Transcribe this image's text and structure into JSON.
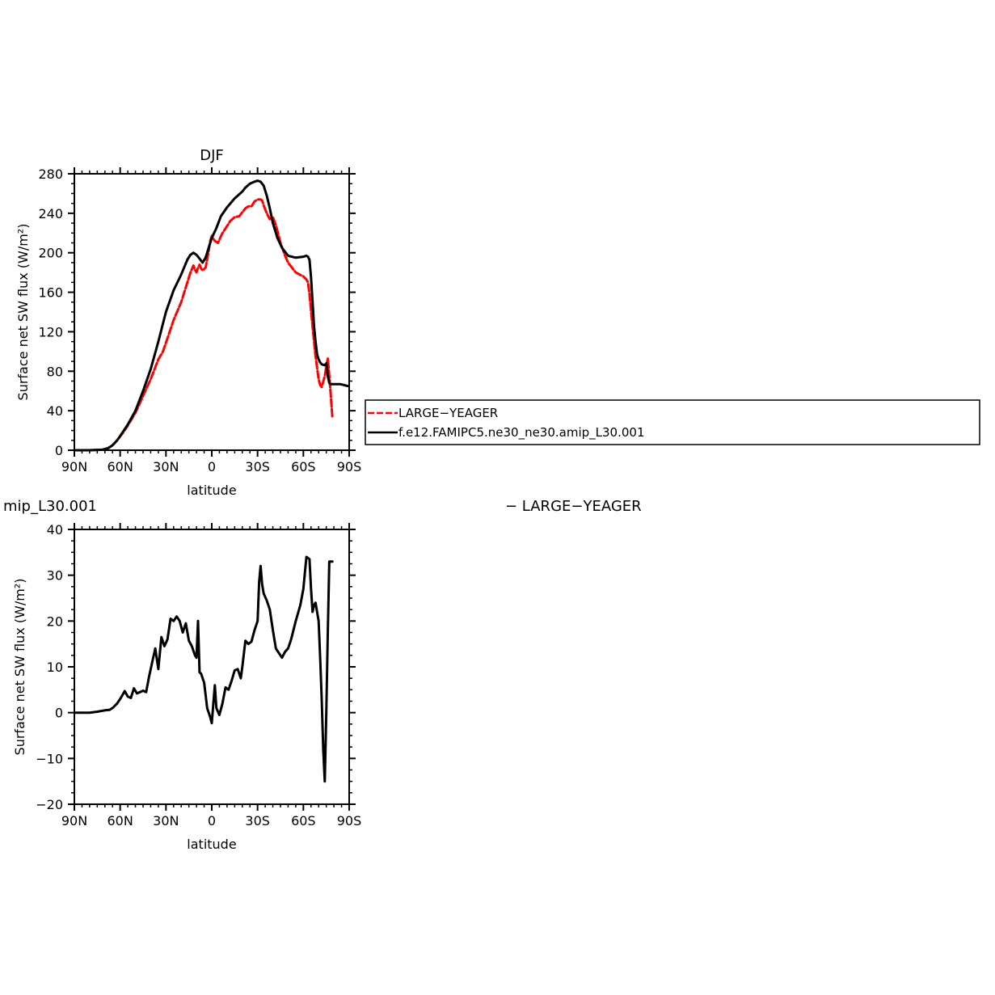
{
  "chart_data": [
    {
      "type": "line",
      "title": "DJF",
      "xlabel": "latitude",
      "ylabel": "Surface net SW flux (W/m²)",
      "xlim": [
        90,
        -90
      ],
      "ylim": [
        0,
        280
      ],
      "x_ticks": [
        90,
        60,
        30,
        0,
        -30,
        -60,
        -90
      ],
      "x_tick_labels": [
        "90N",
        "60N",
        "30N",
        "0",
        "30S",
        "60S",
        "90S"
      ],
      "y_ticks": [
        0,
        40,
        80,
        120,
        160,
        200,
        240,
        280
      ],
      "y_tick_labels": [
        "0",
        "40",
        "80",
        "120",
        "160",
        "200",
        "240",
        "280"
      ],
      "grid": false,
      "legend": "right",
      "series": [
        {
          "name": "LARGE−YEAGER",
          "color": "#ff0000",
          "dash": "dashed",
          "x": [
            90,
            80,
            72,
            68,
            65,
            62,
            58,
            55,
            50,
            45,
            40,
            35,
            32,
            28,
            25,
            20,
            17,
            14,
            12,
            11,
            10,
            9,
            8,
            7,
            6,
            4,
            2,
            1,
            0,
            -2,
            -4,
            -7,
            -10,
            -12,
            -15,
            -18,
            -20,
            -22,
            -24,
            -26,
            -28,
            -30,
            -32,
            -33,
            -34,
            -36,
            -38,
            -40,
            -42,
            -45,
            -48,
            -50,
            -55,
            -60,
            -62,
            -63,
            -64,
            -66,
            -68,
            -70,
            -71,
            -72,
            -74,
            -75,
            -76,
            -77,
            -78,
            -79
          ],
          "y": [
            0,
            0,
            0.5,
            2,
            5,
            10,
            18,
            25,
            38,
            55,
            72,
            92,
            100,
            118,
            132,
            150,
            165,
            180,
            187,
            183,
            180,
            185,
            188,
            184,
            182,
            185,
            202,
            212,
            217,
            212,
            210,
            220,
            227,
            232,
            236,
            237,
            241,
            245,
            247,
            247,
            252,
            254,
            254,
            253,
            248,
            240,
            234,
            236,
            228,
            210,
            197,
            190,
            180,
            176,
            173,
            170,
            158,
            125,
            95,
            72,
            66,
            64,
            75,
            85,
            93,
            75,
            55,
            33
          ]
        },
        {
          "name": "f.e12.FAMIPC5.ne30_ne30.amip_L30.001",
          "color": "#000000",
          "dash": "solid",
          "x": [
            90,
            80,
            72,
            68,
            65,
            62,
            58,
            55,
            50,
            45,
            40,
            35,
            30,
            25,
            20,
            16,
            14,
            12,
            10,
            8,
            6,
            4,
            2,
            0,
            -3,
            -6,
            -10,
            -15,
            -20,
            -22,
            -25,
            -28,
            -30,
            -32,
            -34,
            -36,
            -38,
            -40,
            -43,
            -46,
            -50,
            -55,
            -60,
            -62,
            -63,
            -64,
            -65,
            -66,
            -67,
            -68,
            -69,
            -70,
            -71,
            -72,
            -74,
            -75,
            -76,
            -77,
            -78,
            -80,
            -84,
            -89
          ],
          "y": [
            0,
            0,
            0.5,
            2,
            5,
            10,
            19,
            26,
            40,
            60,
            82,
            110,
            140,
            162,
            178,
            193,
            198,
            200,
            198,
            194,
            190,
            195,
            205,
            215,
            225,
            237,
            246,
            255,
            262,
            266,
            270,
            272,
            273,
            272,
            268,
            258,
            245,
            230,
            215,
            205,
            197,
            195,
            196,
            197,
            196,
            193,
            175,
            150,
            125,
            110,
            97,
            92,
            89,
            87,
            86,
            88,
            75,
            68,
            67,
            67,
            67,
            65
          ]
        }
      ]
    },
    {
      "type": "line",
      "title": "mip_L30.001",
      "title_right": "− LARGE−YEAGER",
      "xlabel": "latitude",
      "ylabel": "Surface net SW flux (W/m²)",
      "xlim": [
        90,
        -90
      ],
      "ylim": [
        -20,
        40
      ],
      "x_ticks": [
        90,
        60,
        30,
        0,
        -30,
        -60,
        -90
      ],
      "x_tick_labels": [
        "90N",
        "60N",
        "30N",
        "0",
        "30S",
        "60S",
        "90S"
      ],
      "y_ticks": [
        -20,
        -10,
        0,
        10,
        20,
        30,
        40
      ],
      "y_tick_labels": [
        "−20",
        "−10",
        "0",
        "10",
        "20",
        "30",
        "40"
      ],
      "grid": false,
      "series": [
        {
          "color": "#000000",
          "dash": "solid",
          "x": [
            90,
            80,
            75,
            70,
            67,
            65,
            62,
            60,
            57,
            55,
            53,
            51,
            49,
            47,
            45,
            43,
            41,
            39,
            37,
            35,
            33,
            31,
            29,
            27,
            25,
            23,
            21,
            19,
            17,
            15,
            13,
            12,
            11,
            10,
            9,
            8,
            7,
            5,
            3,
            1,
            0,
            -2,
            -3,
            -5,
            -7,
            -9,
            -11,
            -13,
            -15,
            -17,
            -19,
            -20,
            -22,
            -24,
            -26,
            -28,
            -30,
            -31,
            -32,
            -33,
            -34,
            -36,
            -38,
            -40,
            -42,
            -44,
            -46,
            -48,
            -50,
            -52,
            -55,
            -58,
            -60,
            -62,
            -64,
            -65,
            -66,
            -67,
            -68,
            -69,
            -70,
            -71,
            -72,
            -73,
            -74,
            -75,
            -76,
            -77,
            -78,
            -79
          ],
          "y": [
            0,
            0,
            0.2,
            0.5,
            0.6,
            1,
            2,
            3,
            4.7,
            3.5,
            3.2,
            5.3,
            4.2,
            4.5,
            4.8,
            4.5,
            8,
            11,
            14,
            9.5,
            16.5,
            14.5,
            16,
            20.5,
            20,
            21,
            20,
            17.5,
            19.5,
            15.7,
            14.5,
            13.5,
            12.5,
            12,
            20,
            8.8,
            8.5,
            6.5,
            1,
            -1,
            -2.3,
            6,
            1,
            -0.5,
            2,
            5.5,
            5,
            7,
            9.2,
            9.5,
            7.5,
            10,
            15.7,
            15,
            15.5,
            18,
            20,
            28.5,
            32,
            28,
            26,
            24.5,
            22.5,
            18,
            14,
            13,
            12,
            13.3,
            14,
            16,
            20,
            23.5,
            27,
            34,
            33.5,
            27,
            22,
            23.5,
            24,
            22,
            20,
            12,
            3,
            -8,
            -15,
            0,
            18,
            33,
            33,
            33
          ]
        }
      ]
    }
  ]
}
